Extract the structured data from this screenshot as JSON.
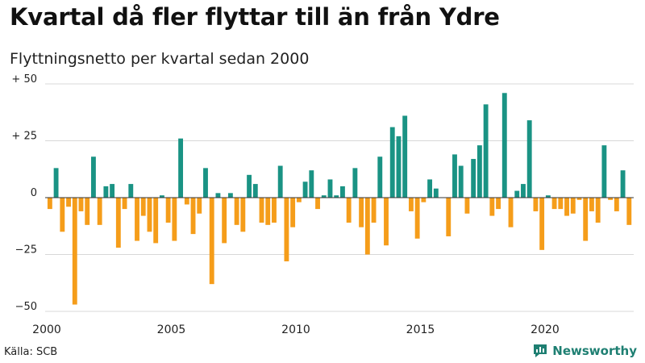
{
  "title": "Kvartal då fler flyttar till än från Ydre",
  "subtitle": "Flyttningsnetto per kvartal sedan 2000",
  "source": "Källa: SCB",
  "brand": {
    "name": "Newsworthy",
    "icon": "newsworthy-logo-icon"
  },
  "colors": {
    "positive": "#1a9384",
    "negative": "#f59d1a",
    "grid": "#d8d8d8",
    "axis": "#333333"
  },
  "chart_data": {
    "type": "bar",
    "x_start_year": 2000,
    "quarters_per_year": 4,
    "values": [
      -5,
      13,
      -15,
      -4,
      -47,
      -6,
      -12,
      18,
      -12,
      5,
      6,
      -22,
      -5,
      6,
      -19,
      -8,
      -15,
      -20,
      1,
      -11,
      -19,
      26,
      -3,
      -16,
      -7,
      13,
      -38,
      2,
      -20,
      2,
      -12,
      -15,
      10,
      6,
      -11,
      -12,
      -11,
      14,
      -28,
      -13,
      -2,
      7,
      12,
      -5,
      1,
      8,
      1,
      5,
      -11,
      13,
      -13,
      -25,
      -11,
      18,
      -21,
      31,
      27,
      36,
      -6,
      -18,
      -2,
      8,
      4,
      0,
      -17,
      19,
      14,
      -7,
      17,
      23,
      41,
      -8,
      -5,
      46,
      -13,
      3,
      6,
      34,
      -6,
      -23,
      1,
      -5,
      -5,
      -8,
      -7,
      -1,
      -19,
      -6,
      -11,
      23,
      -1,
      -6,
      12,
      -12
    ],
    "ylim": [
      -50,
      50
    ],
    "yticks": [
      {
        "value": 50,
        "label": "+ 50"
      },
      {
        "value": 25,
        "label": "+ 25"
      },
      {
        "value": 0,
        "label": "0"
      },
      {
        "value": -25,
        "label": "−25"
      },
      {
        "value": -50,
        "label": "−50"
      }
    ],
    "xticks": [
      {
        "year": 2000,
        "label": "2000"
      },
      {
        "year": 2005,
        "label": "2005"
      },
      {
        "year": 2010,
        "label": "2010"
      },
      {
        "year": 2015,
        "label": "2015"
      },
      {
        "year": 2020,
        "label": "2020"
      }
    ],
    "grid": true,
    "legend": "none"
  }
}
